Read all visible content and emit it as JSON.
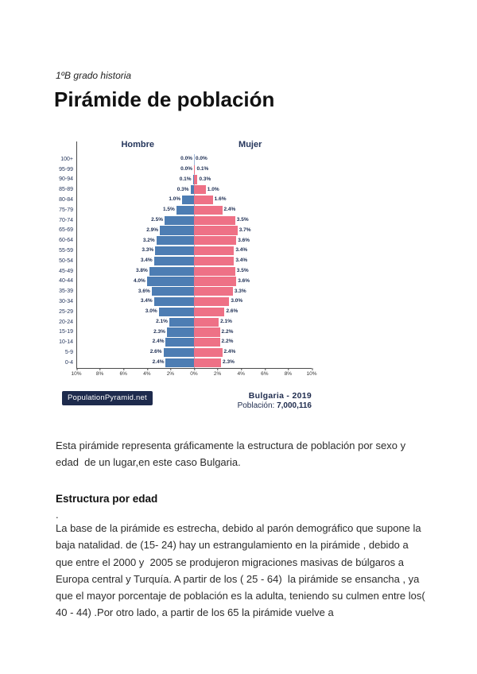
{
  "page": {
    "course_label": "1ºB grado historia",
    "title": "Pirámide de población"
  },
  "chart": {
    "male_header": "Hombre",
    "female_header": "Mujer",
    "source_badge": "PopulationPyramid.net",
    "caption_title": "Bulgaria - 2019",
    "caption_population_label": "Población:",
    "caption_population_value": "7,000,116",
    "axis_ticks": [
      "10%",
      "8%",
      "6%",
      "4%",
      "2%",
      "0%",
      "2%",
      "4%",
      "6%",
      "8%",
      "10%"
    ],
    "male_color": "#4d7db3",
    "female_color": "#ee7186",
    "label_color": "#1c2d52"
  },
  "chart_data": {
    "type": "bar",
    "subtype": "population-pyramid",
    "title": "Bulgaria - 2019",
    "population_total": "7,000,116",
    "unit": "%",
    "axis_range_each_side": [
      0,
      10
    ],
    "axis_tick_step": 2,
    "categories": [
      "100+",
      "95-99",
      "90-94",
      "85-89",
      "80-84",
      "75-79",
      "70-74",
      "65-69",
      "60-64",
      "55-59",
      "50-54",
      "45-49",
      "40-44",
      "35-39",
      "30-34",
      "25-29",
      "20-24",
      "15-19",
      "10-14",
      "5-9",
      "0-4"
    ],
    "series": [
      {
        "name": "Hombre",
        "values": [
          0.0,
          0.0,
          0.1,
          0.3,
          1.0,
          1.5,
          2.5,
          2.9,
          3.2,
          3.3,
          3.4,
          3.8,
          4.0,
          3.6,
          3.4,
          3.0,
          2.1,
          2.3,
          2.4,
          2.6,
          2.4
        ]
      },
      {
        "name": "Mujer",
        "values": [
          0.0,
          0.1,
          0.3,
          1.0,
          1.6,
          2.4,
          3.5,
          3.7,
          3.6,
          3.4,
          3.4,
          3.5,
          3.6,
          3.3,
          3.0,
          2.6,
          2.1,
          2.2,
          2.2,
          2.4,
          2.3
        ]
      }
    ],
    "legend_position": "top",
    "grid": false
  },
  "sections": {
    "intro": "Esta pirámide representa gráficamente la estructura de población por sexo y edad  de un lugar,en este caso Bulgaria.",
    "heading": "Estructura por edad",
    "dot": ".",
    "body": "La base de la pirámide es estrecha, debido al parón demográfico que supone la baja natalidad. de (15- 24) hay un estrangulamiento en la pirámide , debido a que entre el 2000 y  2005 se produjeron migraciones masivas de búlgaros a Europa central y Turquía. A partir de los ( 25 - 64)  la pirámide se ensancha , ya que el mayor porcentaje de población es la adulta, teniendo su culmen entre los( 40 - 44) .Por otro lado, a partir de los 65 la pirámide vuelve a"
  }
}
